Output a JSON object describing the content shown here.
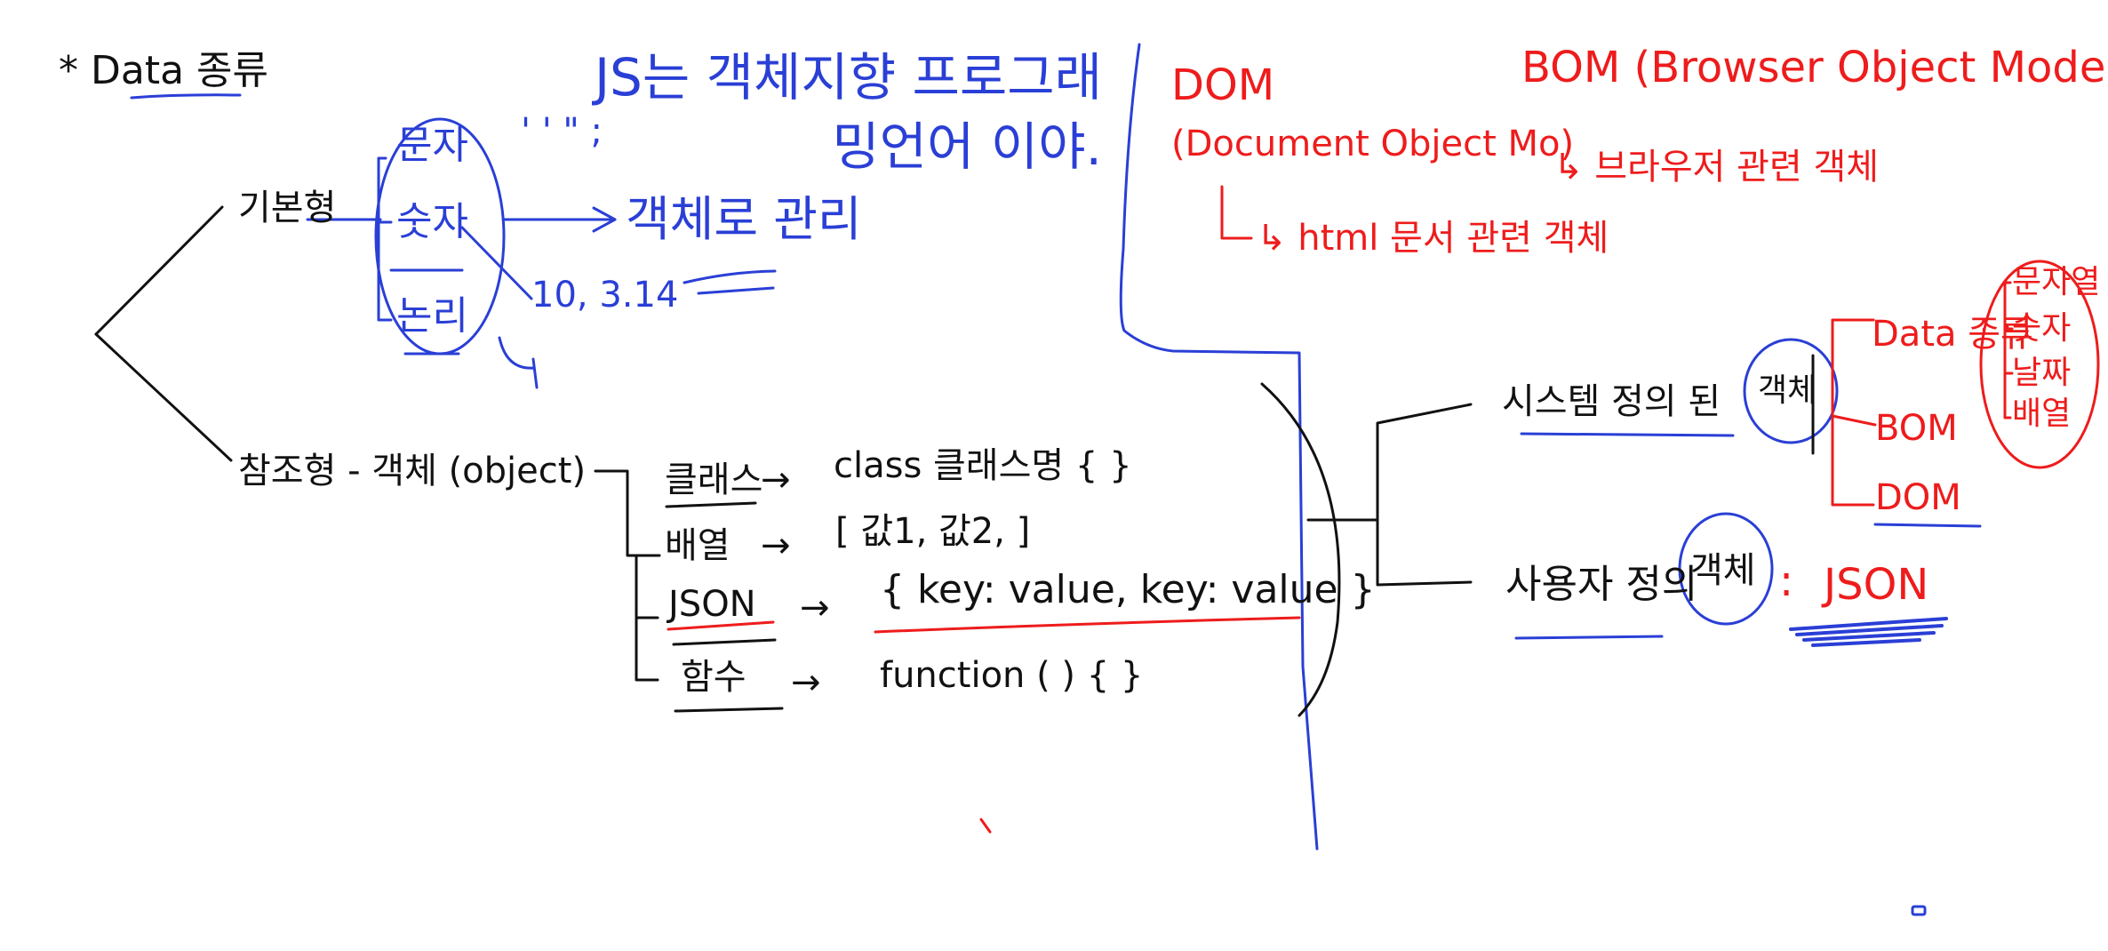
{
  "colors": {
    "black_ink": "#111111",
    "blue_ink": "#2a3fd6",
    "red_ink": "#ee1c1c"
  },
  "title": "* Data 종류",
  "left": {
    "primitive_label": "기본형",
    "primitive_types": [
      "문자",
      "숫자",
      "논리"
    ],
    "primitive_note": "JS는 객체지향 프로그래밍언어 이야.",
    "primitive_arrow_label": "객체로 관리",
    "primitive_examples": "10, 3.14",
    "quote_marks": "' ' \" ;",
    "reference_label": "참조형 - 객체 (object)",
    "reference_items": [
      {
        "label": "클래스",
        "arrow": "→",
        "example": "class 클래스명 {    }"
      },
      {
        "label": "배열",
        "arrow": "→",
        "example": "[ 값1, 값2, ]"
      },
      {
        "label": "JSON",
        "arrow": "→",
        "example": "{ key: value, key: value }"
      },
      {
        "label": "함수",
        "arrow": "→",
        "example": "function ( ) {  }"
      }
    ]
  },
  "right": {
    "dom_title": "DOM",
    "dom_full": "(Document Object Mo)",
    "dom_desc": "↳ html 문서 관련 객체",
    "bom_title": "BOM (Browser Object Model)",
    "bom_desc": "↳ 브라우저 관련 객체",
    "system_label": "시스템 정의 된",
    "system_object": "객체",
    "system_items": [
      "Data 종류",
      "BOM",
      "DOM"
    ],
    "data_subtypes": [
      "문자열",
      "숫자",
      "날짜",
      "배열"
    ],
    "user_label": "사용자 정의",
    "user_object": "객체",
    "user_equals": ":",
    "user_example": "JSON"
  }
}
